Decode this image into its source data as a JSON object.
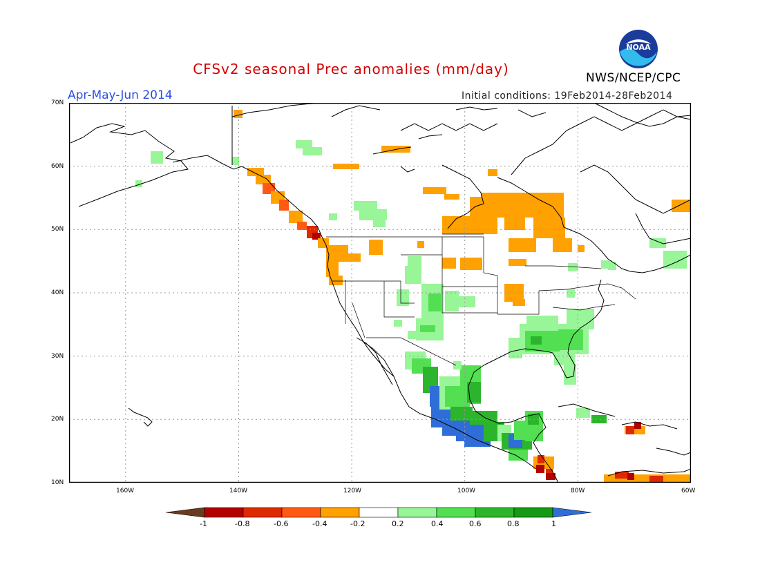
{
  "title": "CFSv2 seasonal Prec anomalies (mm/day)",
  "period": "Apr-May-Jun 2014",
  "initial_conditions": "Initial conditions: 19Feb2014-28Feb2014",
  "agency": "NWS/NCEP/CPC",
  "logo_text": "NOAA",
  "lat_labels": [
    "70N",
    "60N",
    "50N",
    "40N",
    "30N",
    "20N",
    "10N"
  ],
  "lon_labels": [
    "160W",
    "140W",
    "120W",
    "100W",
    "80W",
    "60W"
  ],
  "colorbar": {
    "labels": [
      "-1",
      "-0.8",
      "-0.6",
      "-0.4",
      "-0.2",
      "0.2",
      "0.4",
      "0.6",
      "0.8",
      "1"
    ],
    "colors": [
      "#6b3b1e",
      "#b30000",
      "#dd2a00",
      "#ff5a14",
      "#ffa100",
      "#ffffff",
      "#98f598",
      "#52e052",
      "#2cb52c",
      "#149a14",
      "#2f6ed8"
    ]
  },
  "anomaly_palette": {
    "brown": "#6b3b1e",
    "dark_red": "#b30000",
    "red": "#dd2a00",
    "orange_red": "#ff5a14",
    "orange": "#ffa100",
    "light_green": "#98f598",
    "green": "#52e052",
    "mid_green": "#2cb52c",
    "dark_green": "#149a14",
    "blue": "#2f6ed8"
  }
}
